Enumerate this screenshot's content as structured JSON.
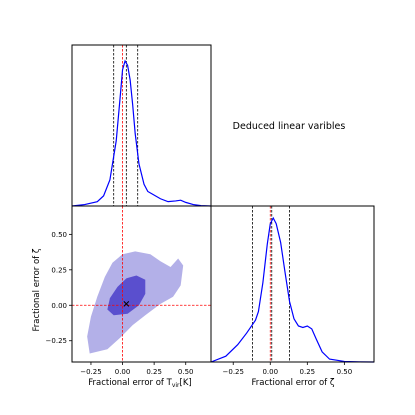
{
  "title": "Deduced linear varibles",
  "chart_data": [
    {
      "panel": "top-left",
      "type": "line",
      "xlim": [
        -0.4,
        0.7
      ],
      "x_ticks": [],
      "y_ticks": [],
      "series": [
        {
          "color": "#0000ff",
          "x": [
            -0.4,
            -0.3,
            -0.2,
            -0.15,
            -0.1,
            -0.05,
            -0.02,
            0.0,
            0.02,
            0.04,
            0.06,
            0.08,
            0.1,
            0.13,
            0.17,
            0.2,
            0.24,
            0.3,
            0.36,
            0.42,
            0.46,
            0.5,
            0.56,
            0.62,
            0.7
          ],
          "y": [
            0.0,
            0.01,
            0.03,
            0.07,
            0.18,
            0.45,
            0.74,
            0.94,
            1.0,
            0.97,
            0.87,
            0.7,
            0.5,
            0.29,
            0.15,
            0.1,
            0.08,
            0.05,
            0.03,
            0.035,
            0.04,
            0.025,
            0.01,
            0.003,
            0.0
          ]
        }
      ],
      "vlines": [
        {
          "x": -0.07,
          "style": "dashed",
          "color": "#000000"
        },
        {
          "x": 0.03,
          "style": "dashed",
          "color": "#000000"
        },
        {
          "x": 0.12,
          "style": "dashed",
          "color": "#000000"
        },
        {
          "x": 0.0,
          "style": "dashed",
          "color": "#ff0000"
        }
      ]
    },
    {
      "panel": "bottom-left",
      "type": "contour",
      "xlabel_main": "Fractional error of T",
      "xlabel_sub": "vir",
      "xlabel_unit": "[K]",
      "ylabel": "Fractional error of ζ",
      "xlim": [
        -0.4,
        0.7
      ],
      "ylim": [
        -0.4,
        0.7
      ],
      "x_ticks": [
        -0.25,
        0.0,
        0.25,
        0.5
      ],
      "x_tick_labels": [
        "−0.25",
        "0.00",
        "0.25",
        "0.50"
      ],
      "y_ticks": [
        -0.25,
        0.0,
        0.25,
        0.5
      ],
      "y_tick_labels": [
        "−0.25",
        "0.00",
        "0.25",
        "0.50"
      ],
      "outer_contour": {
        "color": "#b3b0e8",
        "points": [
          [
            -0.26,
            -0.34
          ],
          [
            -0.12,
            -0.31
          ],
          [
            -0.02,
            -0.23
          ],
          [
            0.08,
            -0.14
          ],
          [
            0.18,
            -0.07
          ],
          [
            0.3,
            0.01
          ],
          [
            0.4,
            0.06
          ],
          [
            0.46,
            0.14
          ],
          [
            0.48,
            0.28
          ],
          [
            0.44,
            0.33
          ],
          [
            0.38,
            0.27
          ],
          [
            0.3,
            0.31
          ],
          [
            0.22,
            0.36
          ],
          [
            0.1,
            0.38
          ],
          [
            0.0,
            0.36
          ],
          [
            -0.08,
            0.3
          ],
          [
            -0.14,
            0.2
          ],
          [
            -0.2,
            0.06
          ],
          [
            -0.25,
            -0.08
          ],
          [
            -0.28,
            -0.22
          ]
        ]
      },
      "inner_contour": {
        "color": "#5a4fce",
        "points": [
          [
            -0.07,
            -0.07
          ],
          [
            0.04,
            -0.06
          ],
          [
            0.13,
            0.0
          ],
          [
            0.18,
            0.08
          ],
          [
            0.18,
            0.18
          ],
          [
            0.11,
            0.21
          ],
          [
            0.03,
            0.19
          ],
          [
            -0.04,
            0.13
          ],
          [
            -0.1,
            0.05
          ],
          [
            -0.12,
            -0.03
          ]
        ]
      },
      "marker": {
        "x": 0.03,
        "y": 0.01,
        "symbol": "x"
      },
      "hline": {
        "y": 0.0,
        "style": "dashed",
        "color": "#ff0000"
      },
      "vline": {
        "x": 0.0,
        "style": "dashed",
        "color": "#ff0000"
      }
    },
    {
      "panel": "bottom-right",
      "type": "line",
      "xlabel": "Fractional error of ζ",
      "xlim": [
        -0.4,
        0.7
      ],
      "x_ticks": [
        -0.25,
        0.0,
        0.25,
        0.5
      ],
      "x_tick_labels": [
        "−0.25",
        "0.00",
        "0.25",
        "0.50"
      ],
      "y_ticks": [],
      "series": [
        {
          "color": "#0000ff",
          "x": [
            -0.4,
            -0.3,
            -0.22,
            -0.16,
            -0.12,
            -0.1,
            -0.08,
            -0.05,
            -0.02,
            0.0,
            0.02,
            0.04,
            0.07,
            0.1,
            0.13,
            0.16,
            0.19,
            0.22,
            0.25,
            0.28,
            0.31,
            0.35,
            0.4,
            0.5,
            0.6,
            0.7
          ],
          "y": [
            0.0,
            0.04,
            0.12,
            0.2,
            0.26,
            0.29,
            0.35,
            0.55,
            0.82,
            0.96,
            1.0,
            0.96,
            0.83,
            0.62,
            0.42,
            0.3,
            0.25,
            0.24,
            0.25,
            0.23,
            0.16,
            0.07,
            0.02,
            0.004,
            0.001,
            0.0
          ]
        }
      ],
      "vlines": [
        {
          "x": -0.12,
          "style": "dashed",
          "color": "#000000"
        },
        {
          "x": 0.0,
          "style": "dashed",
          "color": "#ff0000"
        },
        {
          "x": 0.01,
          "style": "dashed",
          "color": "#000000"
        },
        {
          "x": 0.13,
          "style": "dashed",
          "color": "#000000"
        }
      ]
    }
  ]
}
